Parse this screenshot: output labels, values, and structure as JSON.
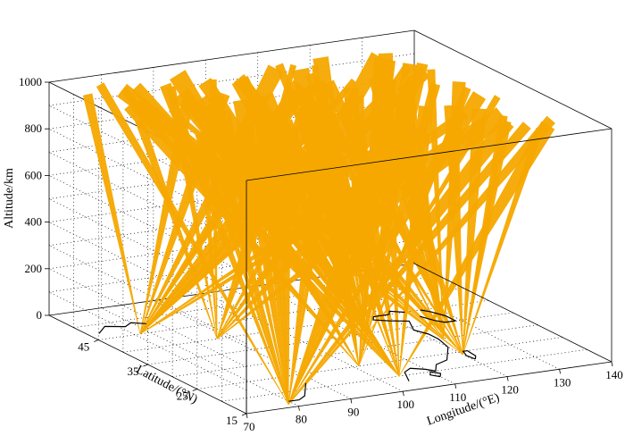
{
  "chart_data": {
    "type": "3d-ray-fan",
    "xlabel": "Longitude/(°E)",
    "ylabel": "Latitude/(°N)",
    "zlabel": "Altitude/km",
    "xticks": [
      "70",
      "80",
      "90",
      "100",
      "110",
      "120",
      "130",
      "140"
    ],
    "yticks": [
      "15",
      "25",
      "35",
      "45"
    ],
    "zticks": [
      "0",
      "200",
      "400",
      "600",
      "800",
      "1000"
    ],
    "xlim": [
      70,
      140
    ],
    "ylim": [
      15,
      55
    ],
    "zlim": [
      0,
      1000
    ],
    "grid": "dotted",
    "ray_color": "#f5a800",
    "coastline_color": "#000000",
    "ray_groups": [
      {
        "station_lon": 78,
        "station_lat": 45,
        "ray_count": 14
      },
      {
        "station_lon": 79,
        "station_lat": 16,
        "ray_count": 18
      },
      {
        "station_lon": 88,
        "station_lat": 40,
        "ray_count": 12
      },
      {
        "station_lon": 101,
        "station_lat": 25,
        "ray_count": 16
      },
      {
        "station_lon": 104,
        "station_lat": 20,
        "ray_count": 14
      },
      {
        "station_lon": 112,
        "station_lat": 35,
        "ray_count": 12
      },
      {
        "station_lon": 116,
        "station_lat": 40,
        "ray_count": 10
      },
      {
        "station_lon": 120,
        "station_lat": 24,
        "ray_count": 12
      },
      {
        "station_lon": 122,
        "station_lat": 30,
        "ray_count": 10
      }
    ]
  }
}
